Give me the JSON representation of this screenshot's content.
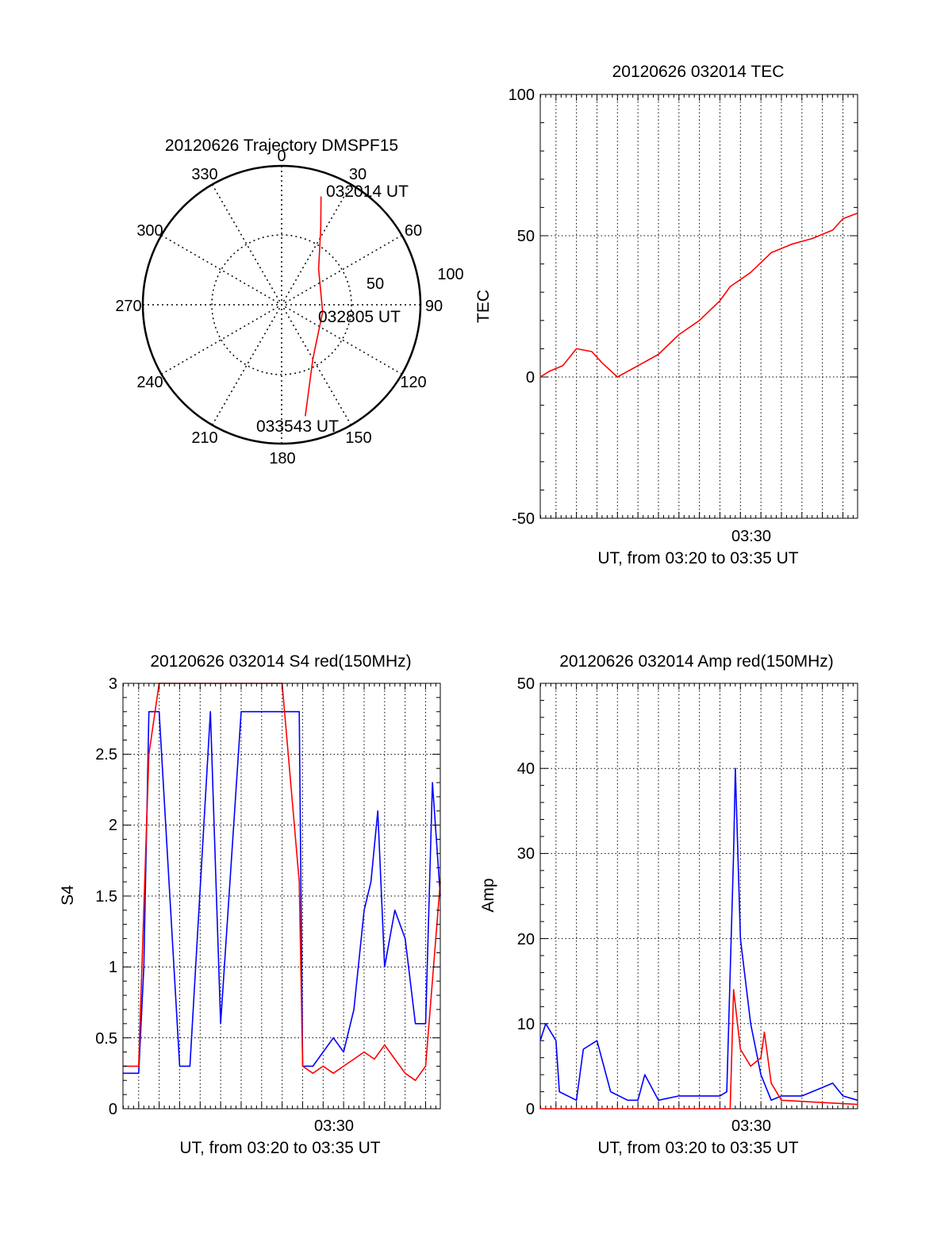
{
  "chart_data": [
    {
      "type": "polar",
      "title": "20120626 Trajectory DMSPF15",
      "angle_labels": [
        "0",
        "30",
        "60",
        "90",
        "120",
        "150",
        "180",
        "210",
        "240",
        "270",
        "300",
        "330"
      ],
      "radius_labels": [
        "50",
        "100"
      ],
      "radius_range": [
        0,
        100
      ],
      "grid": true,
      "series": [
        {
          "color": "#ff0000",
          "points": [
            {
              "az": 20,
              "r": 83
            },
            {
              "az": 27,
              "r": 62
            },
            {
              "az": 46,
              "r": 37
            },
            {
              "az": 100,
              "r": 30
            },
            {
              "az": 150,
              "r": 45
            },
            {
              "az": 168,
              "r": 82
            }
          ]
        }
      ],
      "annotations": [
        "032014 UT",
        "032805 UT",
        "033543 UT"
      ]
    },
    {
      "type": "line",
      "title": "20120626 032014 TEC",
      "xlabel": "UT, from 03:20 to 03:35 UT",
      "ylabel": "TEC",
      "x_tick_labels": [
        "03:30"
      ],
      "y_tick_labels": [
        "-50",
        "0",
        "50",
        "100"
      ],
      "xlim": [
        "03:20:14",
        "03:35:43"
      ],
      "ylim": [
        -50,
        100
      ],
      "grid": true,
      "series": [
        {
          "color": "#ff0000",
          "x": [
            "03:20:14",
            "03:20:40",
            "03:21:20",
            "03:22:00",
            "03:22:45",
            "03:23:15",
            "03:24:00",
            "03:25:00",
            "03:26:00",
            "03:27:00",
            "03:28:00",
            "03:29:00",
            "03:29:30",
            "03:30:30",
            "03:31:30",
            "03:32:30",
            "03:33:30",
            "03:34:30",
            "03:35:00",
            "03:35:43"
          ],
          "y": [
            0,
            2,
            4,
            10,
            9,
            5,
            0,
            4,
            8,
            15,
            20,
            27,
            32,
            37,
            44,
            47,
            49,
            52,
            56,
            58
          ]
        }
      ]
    },
    {
      "type": "line",
      "title": "20120626 032014 S4 red(150MHz)",
      "xlabel": "UT, from 03:20 to 03:35 UT",
      "ylabel": "S4",
      "x_tick_labels": [
        "03:30"
      ],
      "y_tick_labels": [
        "0",
        "0.5",
        "1",
        "1.5",
        "2",
        "2.5",
        "3"
      ],
      "xlim": [
        "03:20:14",
        "03:35:43"
      ],
      "ylim": [
        0,
        3
      ],
      "grid": true,
      "series": [
        {
          "color": "#0000ff",
          "x": [
            "03:20:14",
            "03:21:00",
            "03:21:15",
            "03:21:30",
            "03:22:00",
            "03:23:00",
            "03:23:30",
            "03:24:30",
            "03:25:00",
            "03:26:00",
            "03:27:00",
            "03:28:00",
            "03:28:50",
            "03:29:00",
            "03:29:30",
            "03:30:00",
            "03:30:30",
            "03:31:00",
            "03:31:30",
            "03:32:00",
            "03:32:20",
            "03:32:40",
            "03:33:00",
            "03:33:30",
            "03:34:00",
            "03:34:30",
            "03:35:00",
            "03:35:20",
            "03:35:43"
          ],
          "y": [
            0.25,
            0.25,
            1.0,
            2.8,
            2.8,
            0.3,
            0.3,
            2.8,
            0.6,
            2.8,
            2.8,
            2.8,
            2.8,
            0.3,
            0.3,
            0.4,
            0.5,
            0.4,
            0.7,
            1.4,
            1.6,
            2.1,
            1.0,
            1.4,
            1.2,
            0.6,
            0.6,
            2.3,
            1.5
          ]
        },
        {
          "color": "#ff0000",
          "x": [
            "03:20:14",
            "03:21:00",
            "03:21:30",
            "03:22:00",
            "03:23:00",
            "03:24:00",
            "03:25:00",
            "03:26:00",
            "03:27:00",
            "03:28:00",
            "03:28:50",
            "03:29:00",
            "03:29:30",
            "03:30:00",
            "03:30:30",
            "03:31:00",
            "03:31:30",
            "03:32:00",
            "03:32:30",
            "03:33:00",
            "03:33:30",
            "03:34:00",
            "03:34:30",
            "03:35:00",
            "03:35:43"
          ],
          "y": [
            0.3,
            0.3,
            2.5,
            3.0,
            3.0,
            3.0,
            3.0,
            3.0,
            3.0,
            3.0,
            1.6,
            0.3,
            0.25,
            0.3,
            0.25,
            0.3,
            0.35,
            0.4,
            0.35,
            0.45,
            0.35,
            0.25,
            0.2,
            0.3,
            1.6
          ]
        }
      ]
    },
    {
      "type": "line",
      "title": "20120626 032014 Amp red(150MHz)",
      "xlabel": "UT, from 03:20 to 03:35 UT",
      "ylabel": "Amp",
      "x_tick_labels": [
        "03:30"
      ],
      "y_tick_labels": [
        "0",
        "10",
        "20",
        "30",
        "40",
        "50"
      ],
      "xlim": [
        "03:20:14",
        "03:35:43"
      ],
      "ylim": [
        0,
        50
      ],
      "grid": true,
      "series": [
        {
          "color": "#0000ff",
          "x": [
            "03:20:14",
            "03:20:30",
            "03:21:00",
            "03:21:10",
            "03:22:00",
            "03:22:20",
            "03:23:00",
            "03:23:40",
            "03:24:30",
            "03:25:00",
            "03:25:20",
            "03:26:00",
            "03:27:00",
            "03:28:00",
            "03:29:00",
            "03:29:20",
            "03:29:40",
            "03:29:45",
            "03:30:00",
            "03:30:30",
            "03:31:00",
            "03:31:30",
            "03:32:00",
            "03:33:00",
            "03:34:00",
            "03:34:30",
            "03:35:00",
            "03:35:43"
          ],
          "y": [
            8,
            10,
            8,
            2,
            1,
            7,
            8,
            2,
            1,
            1,
            4,
            1,
            1.5,
            1.5,
            1.5,
            2,
            30,
            40,
            20,
            10,
            4,
            1,
            1.5,
            1.5,
            2.5,
            3,
            1.5,
            1
          ]
        },
        {
          "color": "#ff0000",
          "x": [
            "03:20:14",
            "03:29:30",
            "03:29:40",
            "03:30:00",
            "03:30:30",
            "03:31:00",
            "03:31:10",
            "03:31:30",
            "03:32:00",
            "03:35:43"
          ],
          "y": [
            0,
            0,
            14,
            7,
            5,
            6,
            9,
            3,
            1,
            0.5
          ]
        }
      ]
    }
  ]
}
